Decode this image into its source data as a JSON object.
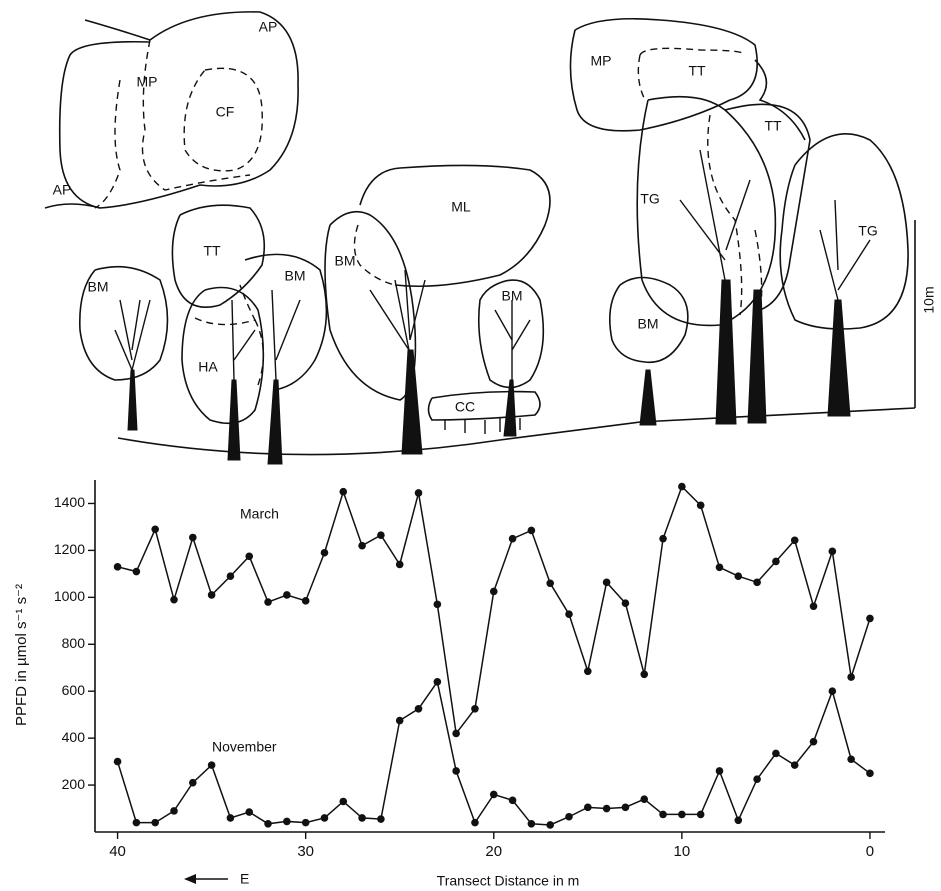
{
  "diagram": {
    "labels": [
      "AP",
      "MP",
      "CF",
      "AP",
      "MP",
      "TT",
      "TT",
      "TG",
      "TG",
      "ML",
      "TT",
      "BM",
      "BM",
      "BM",
      "HA",
      "BM",
      "CC",
      "BM"
    ],
    "scale_label": "10m",
    "direction_label": "E"
  },
  "chart_data": {
    "type": "line",
    "x_label": "Transect  Distance  in  m",
    "y_label": "PPFD in µmol s⁻¹ s⁻²",
    "x": [
      40,
      39,
      38,
      37,
      36,
      35,
      34,
      33,
      32,
      31,
      30,
      29,
      28,
      27,
      26,
      25,
      24,
      23,
      22,
      21,
      20,
      19,
      18,
      17,
      16,
      15,
      14,
      13,
      12,
      11,
      10,
      9,
      8,
      7,
      6,
      5,
      4,
      3,
      2,
      1,
      0
    ],
    "series": [
      {
        "name": "March",
        "color": "#111111",
        "values": [
          1130,
          1110,
          1290,
          990,
          1255,
          1010,
          1090,
          1175,
          980,
          1010,
          985,
          1190,
          1450,
          1220,
          1265,
          1140,
          1445,
          970,
          420,
          525,
          1025,
          1250,
          1285,
          1060,
          928,
          685,
          1064,
          975,
          672,
          1250,
          1472,
          1392,
          1128,
          1090,
          1064,
          1153,
          1243,
          962,
          1196,
          660,
          910
        ]
      },
      {
        "name": "November",
        "color": "#111111",
        "values": [
          300,
          40,
          40,
          90,
          210,
          285,
          60,
          85,
          35,
          45,
          40,
          60,
          130,
          60,
          55,
          475,
          525,
          640,
          260,
          40,
          160,
          135,
          35,
          30,
          65,
          105,
          100,
          105,
          140,
          75,
          75,
          75,
          260,
          50,
          225,
          335,
          285,
          385,
          600,
          310,
          250
        ]
      }
    ],
    "xlim": [
      41.2,
      -0.8
    ],
    "xticks": [
      40,
      30,
      20,
      10,
      0
    ],
    "ylim": [
      0,
      1500
    ],
    "yticks": [
      200,
      400,
      600,
      800,
      1000,
      1200,
      1400
    ]
  }
}
